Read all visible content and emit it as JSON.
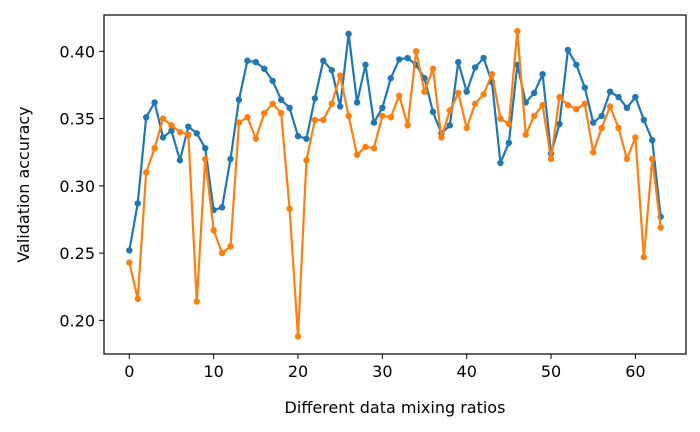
{
  "chart_data": {
    "type": "line",
    "title": "",
    "xlabel": "Different data mixing ratios",
    "ylabel": "Validation accuracy",
    "xlim": [
      -3,
      66
    ],
    "ylim": [
      0.175,
      0.427
    ],
    "xticks": [
      0,
      10,
      20,
      30,
      40,
      50,
      60
    ],
    "yticks": [
      0.2,
      0.25,
      0.3,
      0.35,
      0.4
    ],
    "ytick_labels": [
      "0.20",
      "0.25",
      "0.30",
      "0.35",
      "0.40"
    ],
    "grid": false,
    "legend": false,
    "x": [
      0,
      1,
      2,
      3,
      4,
      5,
      6,
      7,
      8,
      9,
      10,
      11,
      12,
      13,
      14,
      15,
      16,
      17,
      18,
      19,
      20,
      21,
      22,
      23,
      24,
      25,
      26,
      27,
      28,
      29,
      30,
      31,
      32,
      33,
      34,
      35,
      36,
      37,
      38,
      39,
      40,
      41,
      42,
      43,
      44,
      45,
      46,
      47,
      48,
      49,
      50,
      51,
      52,
      53,
      54,
      55,
      56,
      57,
      58,
      59,
      60,
      61,
      62,
      63
    ],
    "series": [
      {
        "color": "#1f77b4",
        "values": [
          0.252,
          0.287,
          0.351,
          0.362,
          0.336,
          0.341,
          0.319,
          0.344,
          0.339,
          0.328,
          0.282,
          0.284,
          0.32,
          0.364,
          0.393,
          0.392,
          0.387,
          0.378,
          0.364,
          0.358,
          0.337,
          0.335,
          0.365,
          0.393,
          0.386,
          0.359,
          0.413,
          0.362,
          0.39,
          0.347,
          0.358,
          0.38,
          0.394,
          0.395,
          0.39,
          0.38,
          0.355,
          0.339,
          0.345,
          0.392,
          0.37,
          0.388,
          0.395,
          0.377,
          0.317,
          0.332,
          0.39,
          0.362,
          0.369,
          0.383,
          0.324,
          0.346,
          0.401,
          0.39,
          0.373,
          0.347,
          0.352,
          0.37,
          0.366,
          0.358,
          0.366,
          0.349,
          0.334,
          0.277
        ]
      },
      {
        "color": "#ff7f0e",
        "values": [
          0.243,
          0.216,
          0.31,
          0.328,
          0.35,
          0.345,
          0.34,
          0.338,
          0.214,
          0.32,
          0.267,
          0.25,
          0.255,
          0.347,
          0.351,
          0.335,
          0.354,
          0.361,
          0.354,
          0.283,
          0.188,
          0.319,
          0.349,
          0.349,
          0.361,
          0.382,
          0.352,
          0.323,
          0.329,
          0.328,
          0.352,
          0.351,
          0.367,
          0.345,
          0.4,
          0.37,
          0.387,
          0.336,
          0.356,
          0.369,
          0.343,
          0.361,
          0.368,
          0.383,
          0.35,
          0.346,
          0.415,
          0.338,
          0.352,
          0.36,
          0.32,
          0.366,
          0.36,
          0.357,
          0.361,
          0.325,
          0.343,
          0.359,
          0.343,
          0.32,
          0.336,
          0.247,
          0.32,
          0.269
        ]
      }
    ]
  }
}
